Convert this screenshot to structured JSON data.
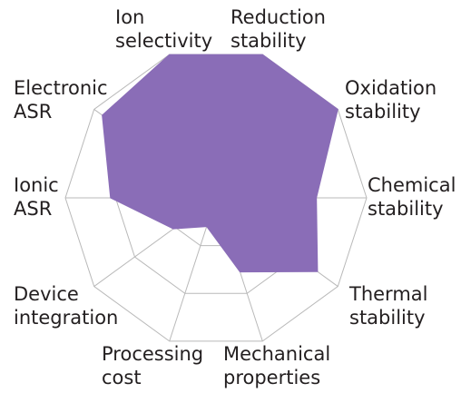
{
  "chart_data": {
    "type": "radar",
    "categories": [
      [
        "Ion",
        "selectivity"
      ],
      [
        "Reduction",
        "stability"
      ],
      [
        "Oxidation",
        "stability"
      ],
      [
        "Chemical",
        "stability"
      ],
      [
        "Thermal",
        "stability"
      ],
      [
        "Mechanical",
        "properties"
      ],
      [
        "Processing",
        "cost"
      ],
      [
        "Device",
        "integration"
      ],
      [
        "Ionic",
        "ASR"
      ],
      [
        "Electronic",
        "ASR"
      ]
    ],
    "values": [
      3,
      3,
      3,
      2,
      2.5,
      1.55,
      0.6,
      1.05,
      2.1,
      2.8
    ],
    "color": "#8a6db7",
    "rlim": [
      0,
      3
    ],
    "rticks": [
      1,
      2,
      3
    ],
    "grid": true
  }
}
